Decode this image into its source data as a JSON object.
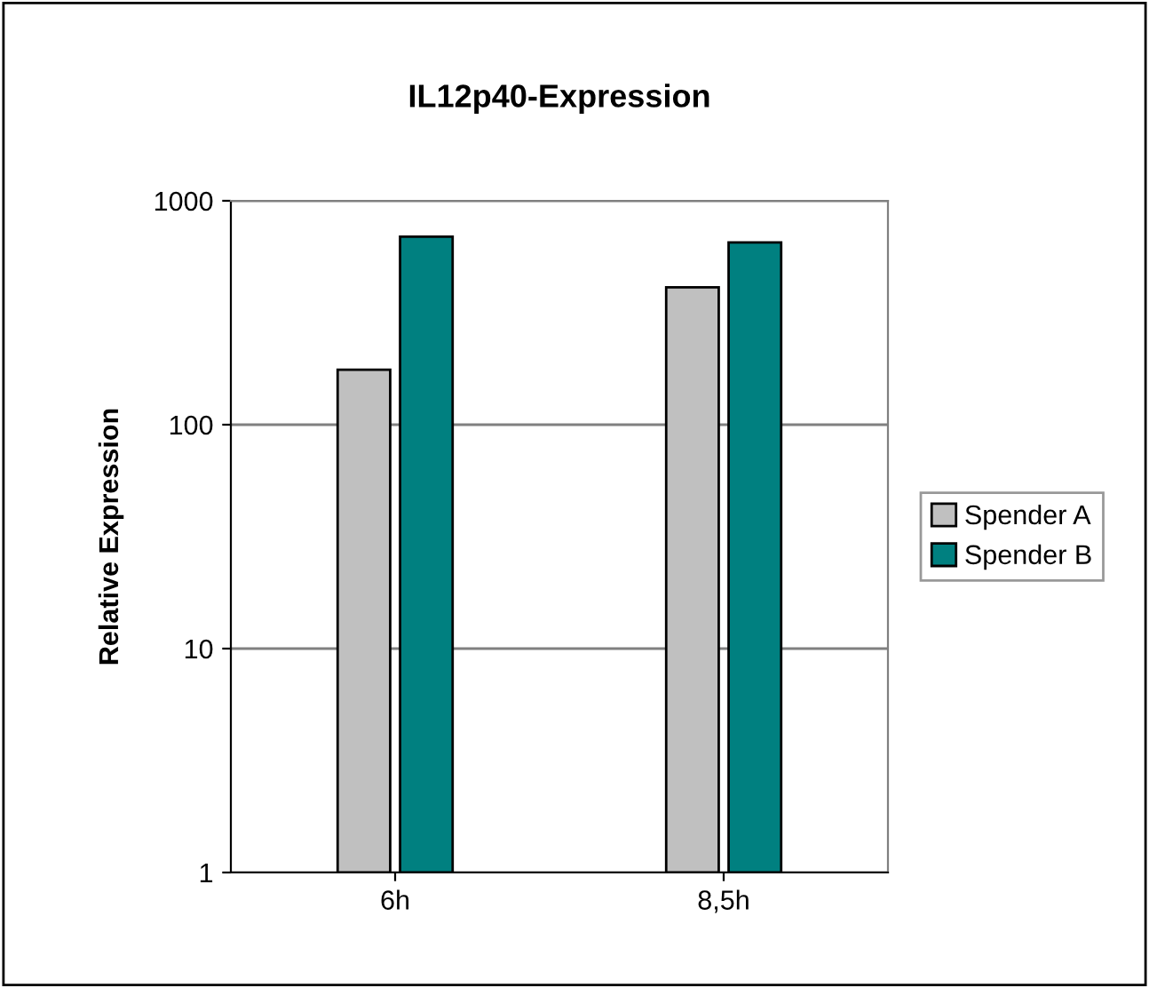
{
  "chart_data": {
    "type": "bar",
    "title": "IL12p40-Expression",
    "ylabel": "Relative Expression",
    "categories": [
      "6h",
      "8,5h"
    ],
    "series": [
      {
        "name": "Spender A",
        "color": "#c0c0c0",
        "values": [
          175,
          410
        ]
      },
      {
        "name": "Spender B",
        "color": "#008080",
        "values": [
          690,
          650
        ]
      }
    ],
    "log": true,
    "ylim": [
      1,
      1000
    ],
    "yticks": [
      1,
      10,
      100,
      1000
    ],
    "grid": "y",
    "legend": "right"
  }
}
